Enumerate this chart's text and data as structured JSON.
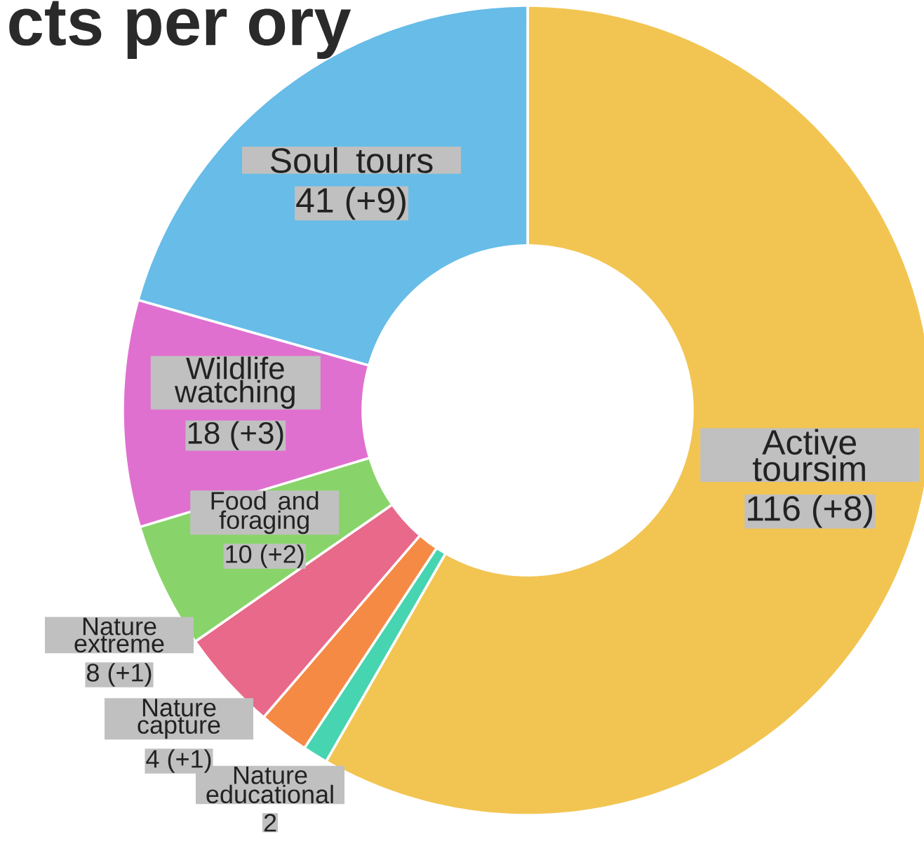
{
  "chart_data": {
    "type": "donut",
    "title": "cts per ory",
    "categories": [
      "Active toursim",
      "Nature educational",
      "Nature capture",
      "Nature extreme",
      "Food and foraging",
      "Wildlife watching",
      "Soul tours"
    ],
    "values": [
      116,
      2,
      4,
      8,
      10,
      18,
      41
    ],
    "colors": [
      "#f2c552",
      "#47d4b0",
      "#f58a45",
      "#e8698a",
      "#88d46a",
      "#e070cf",
      "#67bce8"
    ],
    "value_labels": [
      "116 (+8)",
      "2",
      "4 (+1)",
      "8 (+1)",
      "10 (+2)",
      "18 (+3)",
      "41 (+9)"
    ]
  }
}
